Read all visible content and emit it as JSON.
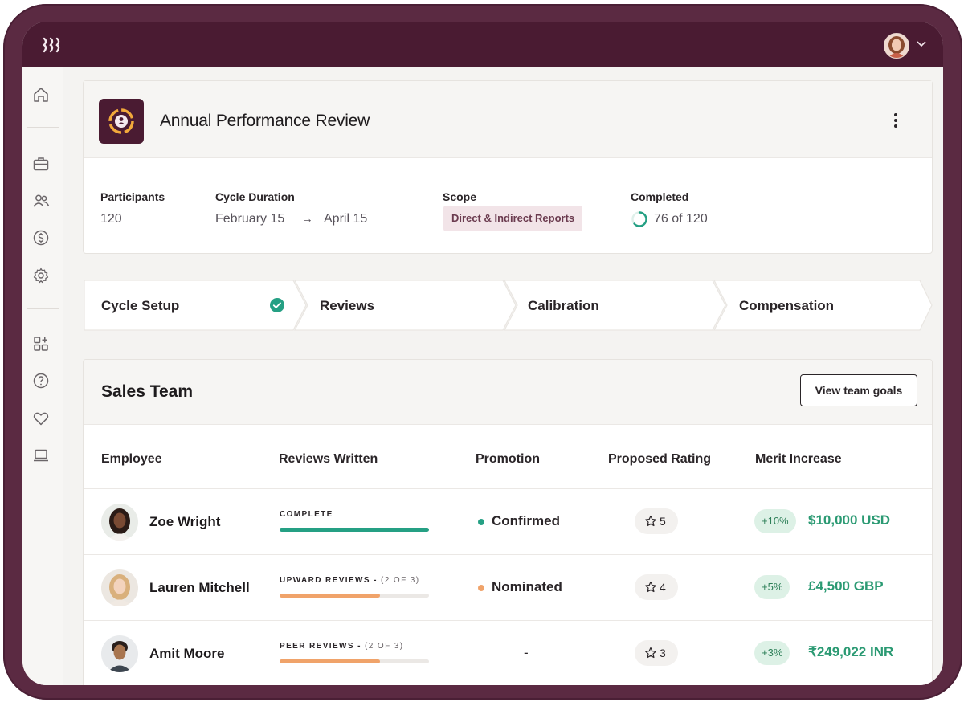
{
  "page": {
    "title": "Annual Performance Review",
    "stats": {
      "participants_label": "Participants",
      "participants_value": "120",
      "duration_label": "Cycle Duration",
      "duration_start": "February 15",
      "duration_arrow": "→",
      "duration_end": "April 15",
      "scope_label": "Scope",
      "scope_value": "Direct & Indirect Reports",
      "completed_label": "Completed",
      "completed_value": "76 of 120",
      "completed_done": 76,
      "completed_total": 120
    }
  },
  "steps": [
    {
      "label": "Cycle Setup",
      "done": true
    },
    {
      "label": "Reviews",
      "done": false
    },
    {
      "label": "Calibration",
      "done": false
    },
    {
      "label": "Compensation",
      "done": false
    }
  ],
  "team": {
    "title": "Sales Team",
    "goals_button": "View team goals",
    "columns": [
      "Employee",
      "Reviews Written",
      "Promotion",
      "Proposed Rating",
      "Merit Increase"
    ],
    "rows": [
      {
        "name": "Zoe Wright",
        "review_label": "COMPLETE",
        "review_sub": "",
        "review_progress": 1.0,
        "review_color": "#25a084",
        "promotion": "Confirmed",
        "promotion_color": "#25a084",
        "rating": "5",
        "merit_pct": "+10%",
        "merit_amount": "$10,000 USD"
      },
      {
        "name": "Lauren Mitchell",
        "review_label": "UPWARD REVIEWS - ",
        "review_sub": "(2 OF 3)",
        "review_progress": 0.67,
        "review_color": "#f0a36a",
        "promotion": "Nominated",
        "promotion_color": "#f0a36a",
        "rating": "4",
        "merit_pct": "+5%",
        "merit_amount": "£4,500 GBP"
      },
      {
        "name": "Amit Moore",
        "review_label": "PEER REVIEWS - ",
        "review_sub": "(2 OF 3)",
        "review_progress": 0.67,
        "review_color": "#f0a36a",
        "promotion": "-",
        "promotion_color": "",
        "rating": "3",
        "merit_pct": "+3%",
        "merit_amount": "₹249,022 INR"
      }
    ]
  },
  "icons": {
    "sidebar": [
      "home-icon",
      "briefcase-icon",
      "people-icon",
      "dollar-icon",
      "settings-icon",
      "apps-add-icon",
      "help-icon",
      "heart-icon",
      "laptop-icon"
    ]
  },
  "colors": {
    "brand": "#4a1b32",
    "accent": "#f2a93b",
    "success": "#25a084",
    "warning": "#f0a36a",
    "merit_text": "#2b9a73"
  }
}
